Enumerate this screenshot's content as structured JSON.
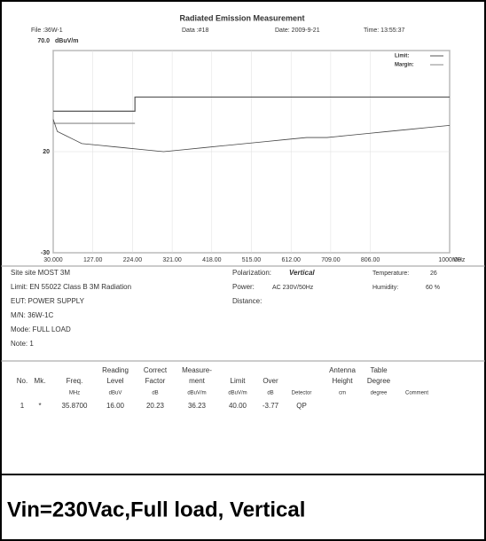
{
  "header": {
    "title": "Radiated Emission Measurement",
    "file": "File :36W-1",
    "data_no": "Data :#18",
    "date": "Date: 2009-9-21",
    "time": "Time: 13:55:37"
  },
  "chart_data": {
    "type": "line",
    "y_unit": "dBuV/m",
    "x_unit": "MHz",
    "xlim": [
      30,
      1000
    ],
    "ylim": [
      -30,
      70
    ],
    "xticks": [
      {
        "value": 30,
        "label": "30.000"
      },
      {
        "value": 127,
        "label": "127.00"
      },
      {
        "value": 224,
        "label": "224.00"
      },
      {
        "value": 321,
        "label": "321.00"
      },
      {
        "value": 418,
        "label": "418.00"
      },
      {
        "value": 515,
        "label": "515.00"
      },
      {
        "value": 612,
        "label": "612.00"
      },
      {
        "value": 709,
        "label": "709.00"
      },
      {
        "value": 806,
        "label": "806.00"
      },
      {
        "value": 1000,
        "label": "1000.00"
      }
    ],
    "yticks": [
      {
        "value": 70,
        "label": "70.0"
      },
      20,
      -30
    ],
    "series": [
      {
        "name": "Limit:",
        "color": "#555555",
        "x": [
          30,
          230,
          230,
          1000
        ],
        "values": [
          40,
          40,
          47,
          47
        ]
      },
      {
        "name": "Margin:",
        "color": "#888888",
        "x": [
          30,
          230
        ],
        "values": [
          34,
          34
        ]
      },
      {
        "color": "#444444",
        "x": [
          30,
          40,
          60,
          80,
          100,
          150,
          200,
          250,
          300,
          350,
          400,
          450,
          500,
          550,
          600,
          650,
          700,
          750,
          800,
          850,
          900,
          950,
          1000
        ],
        "values": [
          36,
          30,
          28,
          26,
          24,
          23,
          22,
          21,
          20,
          21,
          22,
          23,
          24,
          25,
          26,
          27,
          27,
          28,
          29,
          30,
          31,
          32,
          33
        ]
      }
    ]
  },
  "info": {
    "left": [
      "Site  site MOST 3M",
      "Limit: EN 55022 Class B 3M Radiation",
      "EUT: POWER SUPPLY",
      "M/N: 36W-1C",
      "Mode: FULL LOAD",
      "Note: 1"
    ],
    "polarization_label": "Polarization:",
    "polarization": "Vertical",
    "power_label": "Power:",
    "power": "AC 230V/50Hz",
    "distance_label": "Distance:",
    "temperature_label": "Temperature:",
    "temperature": "26",
    "humidity_label": "Humidity:",
    "humidity": "60 %"
  },
  "table": {
    "headers": [
      [
        "No."
      ],
      [
        "Mk."
      ],
      [
        "Freq."
      ],
      [
        "Reading",
        "Level"
      ],
      [
        "Correct",
        "Factor"
      ],
      [
        "Measure-",
        "ment"
      ],
      [
        "Limit"
      ],
      [
        "Over"
      ],
      [],
      [
        "Antenna",
        "Height"
      ],
      [
        "Table",
        "Degree"
      ],
      []
    ],
    "units": [
      "",
      "",
      "MHz",
      "dBuV",
      "dB",
      "dBuV/m",
      "dBuV/m",
      "dB",
      "Detector",
      "cm",
      "degree",
      "Comment"
    ],
    "rows": [
      [
        "1",
        "*",
        "35.8700",
        "16.00",
        "20.23",
        "36.23",
        "40.00",
        "-3.77",
        "QP",
        "",
        "",
        ""
      ]
    ]
  },
  "caption": "Vin=230Vac,Full load,    Vertical"
}
